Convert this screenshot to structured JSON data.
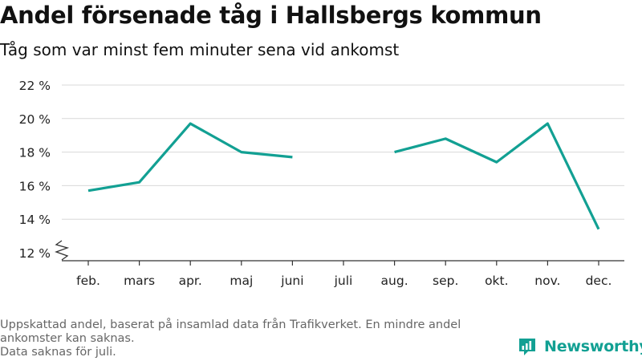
{
  "chart_data": {
    "type": "line",
    "title": "Andel försenade tåg i Hallsbergs kommun",
    "subtitle": "Tåg som var minst fem minuter sena vid ankomst",
    "categories": [
      "feb.",
      "mars",
      "apr.",
      "maj",
      "juni",
      "juli",
      "aug.",
      "sep.",
      "okt.",
      "nov.",
      "dec."
    ],
    "series": [
      {
        "values": [
          15.7,
          16.2,
          19.7,
          18.0,
          17.7,
          null,
          18.0,
          18.8,
          17.4,
          19.7,
          13.4
        ]
      }
    ],
    "yticks": [
      "12 %",
      "14 %",
      "16 %",
      "18 %",
      "20 %",
      "22 %"
    ],
    "ylim": [
      12,
      22
    ],
    "ytick_values": [
      12,
      14,
      16,
      18,
      20,
      22
    ],
    "grid": true,
    "axis_break": true,
    "line_color": "#12a093"
  },
  "footnote": {
    "line1": "Uppskattad andel, baserat på insamlad data från Trafikverket. En mindre andel ankomster kan saknas.",
    "line2": "Data saknas för juli."
  },
  "brand": {
    "name": "Newsworthy",
    "icon": "newsworthy-logo-icon",
    "color": "#12a093"
  }
}
